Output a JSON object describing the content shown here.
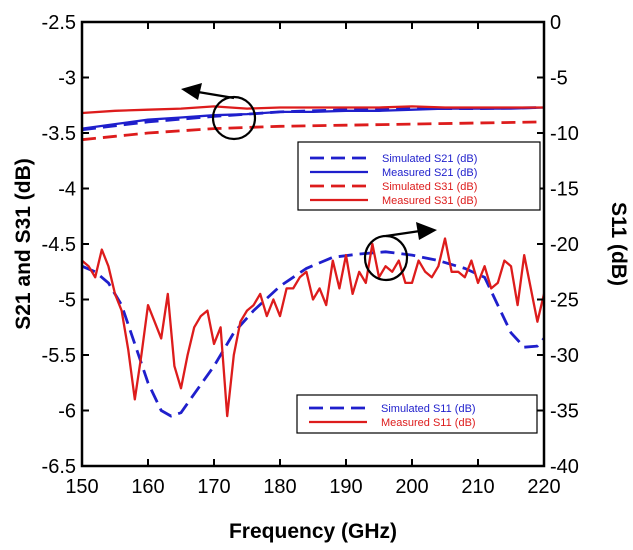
{
  "chart_data": {
    "type": "line",
    "xlabel": "Frequency (GHz)",
    "ylabel_left": "S21 and S31 (dB)",
    "ylabel_right": "S11 (dB)",
    "xlim": [
      150,
      220
    ],
    "ylim_left": [
      -6.5,
      -2.5
    ],
    "ylim_right": [
      -40,
      0
    ],
    "x_ticks": [
      "150",
      "160",
      "170",
      "180",
      "190",
      "200",
      "210",
      "220"
    ],
    "y_left_ticks": [
      "-2.5",
      "-3",
      "-3.5",
      "-4",
      "-4.5",
      "-5",
      "-5.5",
      "-6",
      "-6.5"
    ],
    "y_right_ticks": [
      "0",
      "-5",
      "-10",
      "-15",
      "-20",
      "-25",
      "-30",
      "-35",
      "-40"
    ],
    "grid": false,
    "series": [
      {
        "name": "Simulated S21 (dB)",
        "axis": "left",
        "color": "#1f1fcc",
        "dash": true,
        "x": [
          150,
          160,
          170,
          180,
          190,
          200,
          210,
          220
        ],
        "y": [
          -3.47,
          -3.4,
          -3.35,
          -3.31,
          -3.29,
          -3.28,
          -3.28,
          -3.27
        ]
      },
      {
        "name": "Measured S21 (dB)",
        "axis": "left",
        "color": "#1f1fcc",
        "dash": false,
        "x": [
          150,
          155,
          160,
          165,
          170,
          175,
          180,
          185,
          190,
          195,
          200,
          205,
          210,
          215,
          220
        ],
        "y": [
          -3.46,
          -3.42,
          -3.38,
          -3.36,
          -3.34,
          -3.33,
          -3.31,
          -3.31,
          -3.3,
          -3.3,
          -3.29,
          -3.28,
          -3.28,
          -3.28,
          -3.27
        ]
      },
      {
        "name": "Simulated S31 (dB)",
        "axis": "right",
        "color": "#dd1c1c",
        "dash": true,
        "x": [
          150,
          155,
          160,
          170,
          180,
          190,
          200,
          210,
          220
        ],
        "y": [
          -10.6,
          -10.3,
          -10.0,
          -9.6,
          -9.4,
          -9.3,
          -9.2,
          -9.1,
          -9.0
        ]
      },
      {
        "name": "Measured S31 (dB)",
        "axis": "left",
        "color": "#dd1c1c",
        "dash": false,
        "x": [
          150,
          155,
          160,
          165,
          170,
          175,
          180,
          185,
          190,
          195,
          200,
          205,
          210,
          215,
          220
        ],
        "y": [
          -3.32,
          -3.3,
          -3.29,
          -3.28,
          -3.26,
          -3.28,
          -3.27,
          -3.27,
          -3.27,
          -3.27,
          -3.26,
          -3.27,
          -3.27,
          -3.27,
          -3.27
        ]
      },
      {
        "name": "Simulated S11 (dB)",
        "axis": "right",
        "color": "#1f1fcc",
        "dash": true,
        "x": [
          150,
          152,
          154,
          156,
          158,
          160,
          162,
          163.5,
          165,
          167,
          170,
          173,
          176,
          180,
          184,
          188,
          192,
          196,
          200,
          204,
          208,
          211,
          213,
          215,
          217,
          219,
          220
        ],
        "y": [
          -22,
          -22.5,
          -23.5,
          -25.5,
          -29,
          -32.5,
          -35,
          -35.5,
          -35.2,
          -33.5,
          -31,
          -28,
          -26,
          -23.8,
          -22.2,
          -21.2,
          -20.9,
          -20.7,
          -21,
          -21.5,
          -22.2,
          -23,
          -25.5,
          -28,
          -29.3,
          -29.2,
          -28.5
        ]
      },
      {
        "name": "Measured S11 (dB)",
        "axis": "right",
        "color": "#dd1c1c",
        "dash": false,
        "x": [
          150,
          151,
          152,
          153,
          154,
          155,
          156,
          157,
          158,
          159,
          160,
          161,
          162,
          163,
          164,
          165,
          166,
          167,
          168,
          169,
          170,
          171,
          172,
          173,
          174,
          175,
          176,
          177,
          178,
          179,
          180,
          181,
          182,
          183,
          184,
          185,
          186,
          187,
          188,
          189,
          190,
          191,
          192,
          193,
          194,
          195,
          196,
          197,
          198,
          199,
          200,
          201,
          202,
          203,
          204,
          205,
          206,
          207,
          208,
          209,
          210,
          211,
          212,
          213,
          214,
          215,
          216,
          217,
          218,
          219,
          220
        ],
        "y": [
          -21.5,
          -22,
          -23,
          -20.5,
          -22,
          -24.5,
          -26,
          -29.5,
          -34,
          -30,
          -25.5,
          -27,
          -28.5,
          -24.5,
          -31,
          -33,
          -30,
          -27.5,
          -26.5,
          -26,
          -29,
          -27.5,
          -35.5,
          -30,
          -27,
          -26,
          -25.5,
          -24.5,
          -26.5,
          -25,
          -26.5,
          -24,
          -24,
          -23,
          -22.5,
          -25,
          -24,
          -25.5,
          -21.5,
          -24,
          -21,
          -24.5,
          -22.5,
          -23.5,
          -20,
          -23,
          -22,
          -22.5,
          -21.5,
          -23.5,
          -23.5,
          -21.5,
          -22.5,
          -23,
          -22,
          -19.5,
          -22.5,
          -22.5,
          -23,
          -21.5,
          -23.5,
          -22,
          -24,
          -23.5,
          -21.5,
          -22,
          -25.5,
          -21,
          -24,
          -27,
          -24.5
        ]
      }
    ],
    "legends": [
      [
        "Simulated S21 (dB)",
        "Measured S21 (dB)",
        "Simulated S31 (dB)",
        "Measured S31 (dB)"
      ],
      [
        "Simulated S11 (dB)",
        "Measured S11 (dB)"
      ]
    ]
  }
}
